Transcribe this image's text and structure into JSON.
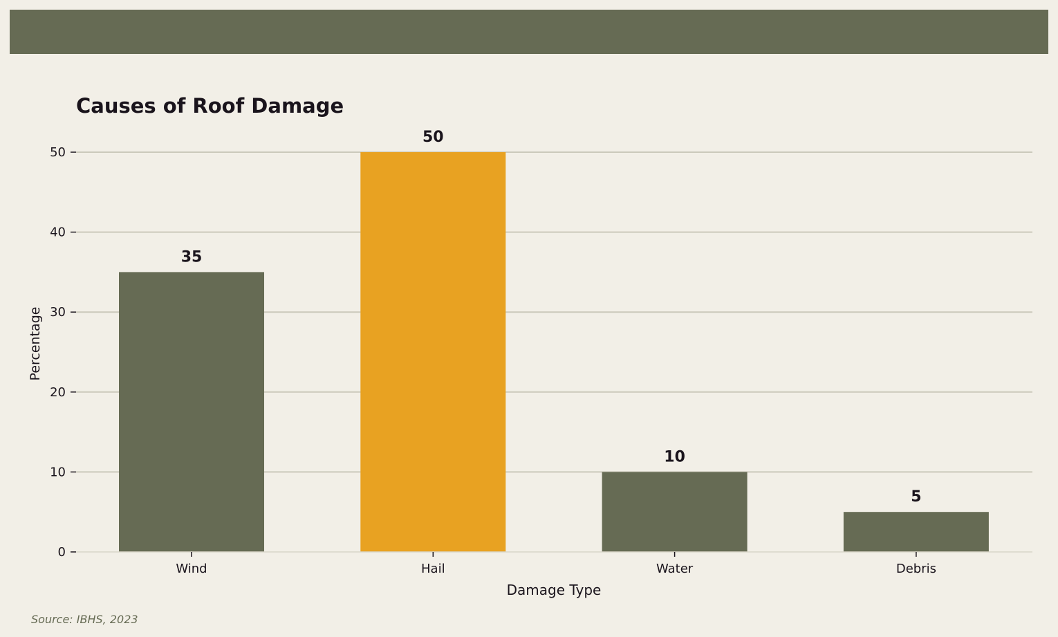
{
  "colors": {
    "background": "#f2efe7",
    "band": "#666b54",
    "bar_default": "#666b54",
    "bar_highlight": "#e8a222",
    "grid": "#cbc9bb",
    "text": "#1a141c",
    "source_text": "#666b54"
  },
  "source": "Source: IBHS, 2023",
  "chart_data": {
    "type": "bar",
    "title": "Causes of Roof Damage",
    "xlabel": "Damage Type",
    "ylabel": "Percentage",
    "categories": [
      "Wind",
      "Hail",
      "Water",
      "Debris"
    ],
    "values": [
      35,
      50,
      10,
      5
    ],
    "highlight": "Hail",
    "ylim": [
      0,
      50
    ],
    "yticks": [
      0,
      10,
      20,
      30,
      40,
      50
    ],
    "grid": true,
    "data_labels": true
  }
}
